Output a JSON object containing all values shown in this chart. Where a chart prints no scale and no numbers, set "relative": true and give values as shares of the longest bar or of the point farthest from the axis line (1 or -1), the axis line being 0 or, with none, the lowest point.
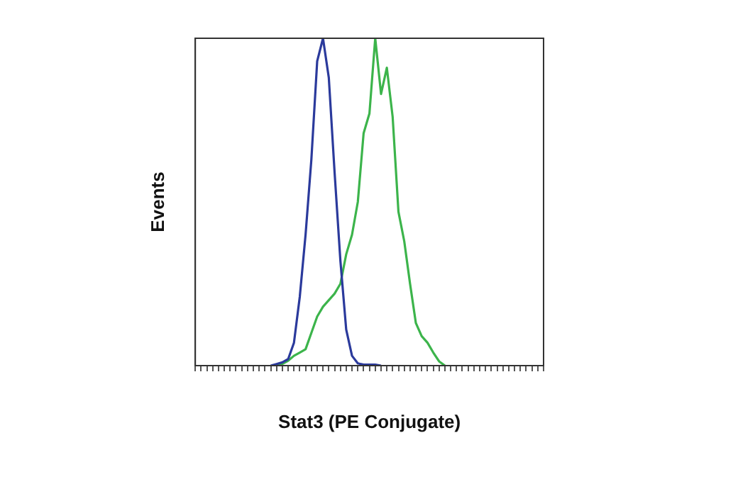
{
  "chart_data": {
    "type": "line",
    "xlabel": "Stat3 (PE Conjugate)",
    "ylabel": "Events",
    "relative": true,
    "grid": false,
    "legend": false,
    "marker": "none",
    "line_style": "solid",
    "categories": [
      null,
      null,
      null,
      null,
      null,
      null,
      null,
      null,
      null,
      null,
      null,
      null,
      null,
      null,
      null,
      null,
      null,
      null,
      null,
      null,
      null,
      null,
      null,
      null,
      null,
      null,
      null,
      null,
      null,
      null,
      null,
      null,
      null,
      null,
      null,
      null,
      null,
      null,
      null,
      null,
      null,
      null,
      null,
      null,
      null,
      null,
      null,
      null,
      null,
      null,
      null,
      null,
      null,
      null,
      null,
      null,
      null,
      null,
      null,
      null,
      null
    ],
    "series": [
      {
        "color": "#2b3a9c",
        "values": [
          null,
          null,
          null,
          null,
          null,
          null,
          null,
          null,
          null,
          null,
          null,
          null,
          null,
          0,
          0.005,
          0.01,
          0.02,
          0.07,
          0.21,
          0.4,
          0.63,
          0.93,
          1,
          0.88,
          0.59,
          0.32,
          0.11,
          0.03,
          0.007,
          0.003,
          0.003,
          0.003,
          0,
          null,
          null,
          null,
          null,
          null,
          null,
          null,
          null,
          null,
          null,
          null,
          null,
          null,
          null,
          null,
          null,
          null,
          null,
          null,
          null,
          null,
          null,
          null,
          null,
          null,
          null,
          null,
          null
        ]
      },
      {
        "color": "#3cb44b",
        "values": [
          null,
          null,
          null,
          null,
          null,
          null,
          null,
          null,
          null,
          null,
          null,
          null,
          null,
          null,
          0,
          0.005,
          0.015,
          0.03,
          0.04,
          0.05,
          0.1,
          0.15,
          0.18,
          0.2,
          0.22,
          0.25,
          0.34,
          0.4,
          0.5,
          0.71,
          0.77,
          1,
          0.83,
          0.91,
          0.76,
          0.47,
          0.38,
          0.25,
          0.13,
          0.09,
          0.07,
          0.04,
          0.013,
          0,
          null,
          null,
          null,
          null,
          null,
          null,
          null,
          null,
          null,
          null,
          null,
          null,
          null,
          null,
          null,
          null,
          null
        ]
      }
    ]
  }
}
